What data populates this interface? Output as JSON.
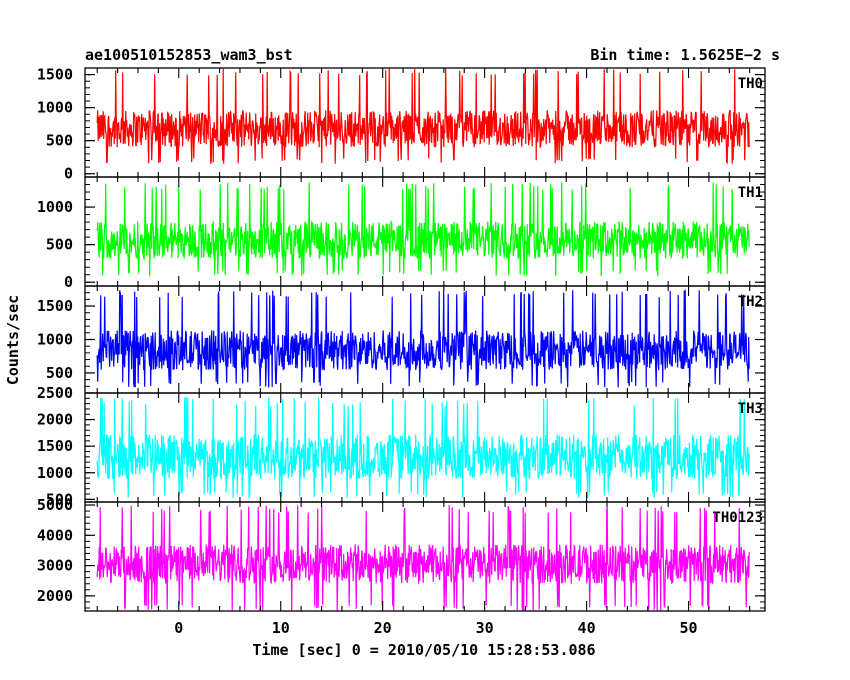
{
  "chart_data": {
    "type": "line",
    "title": "ae100510152853_wam3_bst",
    "bin_time_label": "Bin time: 1.5625E−2 s",
    "xlabel": "Time [sec] 0 = 2010/05/10 15:28:53.086",
    "ylabel": "Counts/sec",
    "xlim": [
      -9.2,
      57.5
    ],
    "data_x_range": [
      -8.0,
      56.0
    ],
    "x_ticks": [
      0,
      10,
      20,
      30,
      40,
      50
    ],
    "x_tick_labels": [
      "0",
      "10",
      "20",
      "30",
      "40",
      "50"
    ],
    "grid": false,
    "series": [
      {
        "name": "TH0",
        "color": "#ff0000",
        "ylim": [
          -50,
          1600
        ],
        "y_ticks": [
          0,
          500,
          1000,
          1500
        ],
        "y_tick_labels": [
          "0",
          "500",
          "1000",
          "1500"
        ],
        "mean": 680,
        "spread": 280,
        "min": 150,
        "max": 1600
      },
      {
        "name": "TH1",
        "color": "#00ff00",
        "ylim": [
          -50,
          1400
        ],
        "y_ticks": [
          0,
          500,
          1000
        ],
        "y_tick_labels": [
          "0",
          "500",
          "1000"
        ],
        "mean": 560,
        "spread": 250,
        "min": 80,
        "max": 1330
      },
      {
        "name": "TH2",
        "color": "#0000ff",
        "ylim": [
          200,
          1800
        ],
        "y_ticks": [
          500,
          1000,
          1500
        ],
        "y_tick_labels": [
          "500",
          "1000",
          "1500"
        ],
        "mean": 840,
        "spread": 300,
        "min": 280,
        "max": 1750
      },
      {
        "name": "TH3",
        "color": "#00ffff",
        "ylim": [
          450,
          2500
        ],
        "y_ticks": [
          500,
          1000,
          1500,
          2000,
          2500
        ],
        "y_tick_labels": [
          "500",
          "1000",
          "1500",
          "2000",
          "2500"
        ],
        "mean": 1300,
        "spread": 420,
        "min": 520,
        "max": 2420
      },
      {
        "name": "TH0123",
        "color": "#ff00ff",
        "ylim": [
          1500,
          5100
        ],
        "y_ticks": [
          2000,
          3000,
          4000,
          5000
        ],
        "y_tick_labels": [
          "2000",
          "3000",
          "4000",
          "5000"
        ],
        "mean": 3050,
        "spread": 650,
        "min": 1500,
        "max": 5000
      }
    ]
  }
}
